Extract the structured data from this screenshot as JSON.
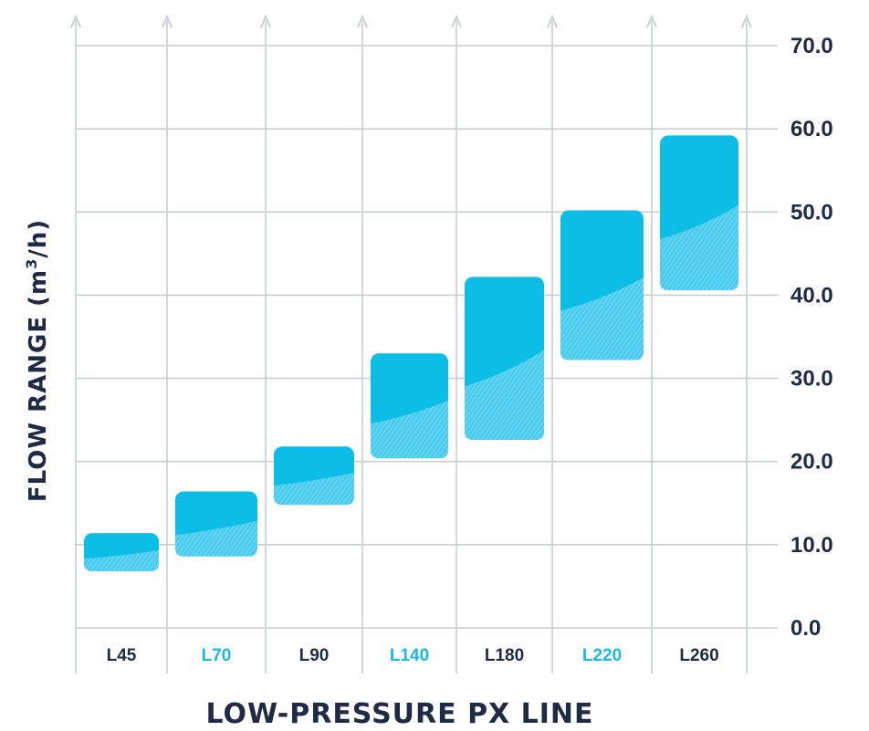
{
  "chart_data": {
    "type": "floating-bar",
    "title": "",
    "xlabel": "LOW-PRESSURE PX LINE",
    "ylabel_main": "FLOW RANGE (m",
    "ylabel_sup": "3",
    "ylabel_end": "/h)",
    "ylim": [
      0,
      70
    ],
    "yticks": [
      "0.0",
      "10.0",
      "20.0",
      "30.0",
      "40.0",
      "50.0",
      "60.0",
      "70.0"
    ],
    "yaxis_position": "right",
    "grid": true,
    "categories": [
      "L45",
      "L70",
      "L90",
      "L140",
      "L180",
      "L220",
      "L260"
    ],
    "category_colors": [
      "#1f2a44",
      "#1ab9e6",
      "#1f2a44",
      "#1ab9e6",
      "#1f2a44",
      "#1ab9e6",
      "#1f2a44"
    ],
    "ranges": [
      {
        "low": 6.8,
        "high": 11.4
      },
      {
        "low": 8.6,
        "high": 16.4
      },
      {
        "low": 14.8,
        "high": 21.8
      },
      {
        "low": 20.4,
        "high": 33.0
      },
      {
        "low": 22.6,
        "high": 42.2
      },
      {
        "low": 32.2,
        "high": 50.2
      },
      {
        "low": 40.6,
        "high": 59.2
      }
    ],
    "bar_color": "#0cbde6",
    "bar_light_color": "#5fd3f0"
  }
}
